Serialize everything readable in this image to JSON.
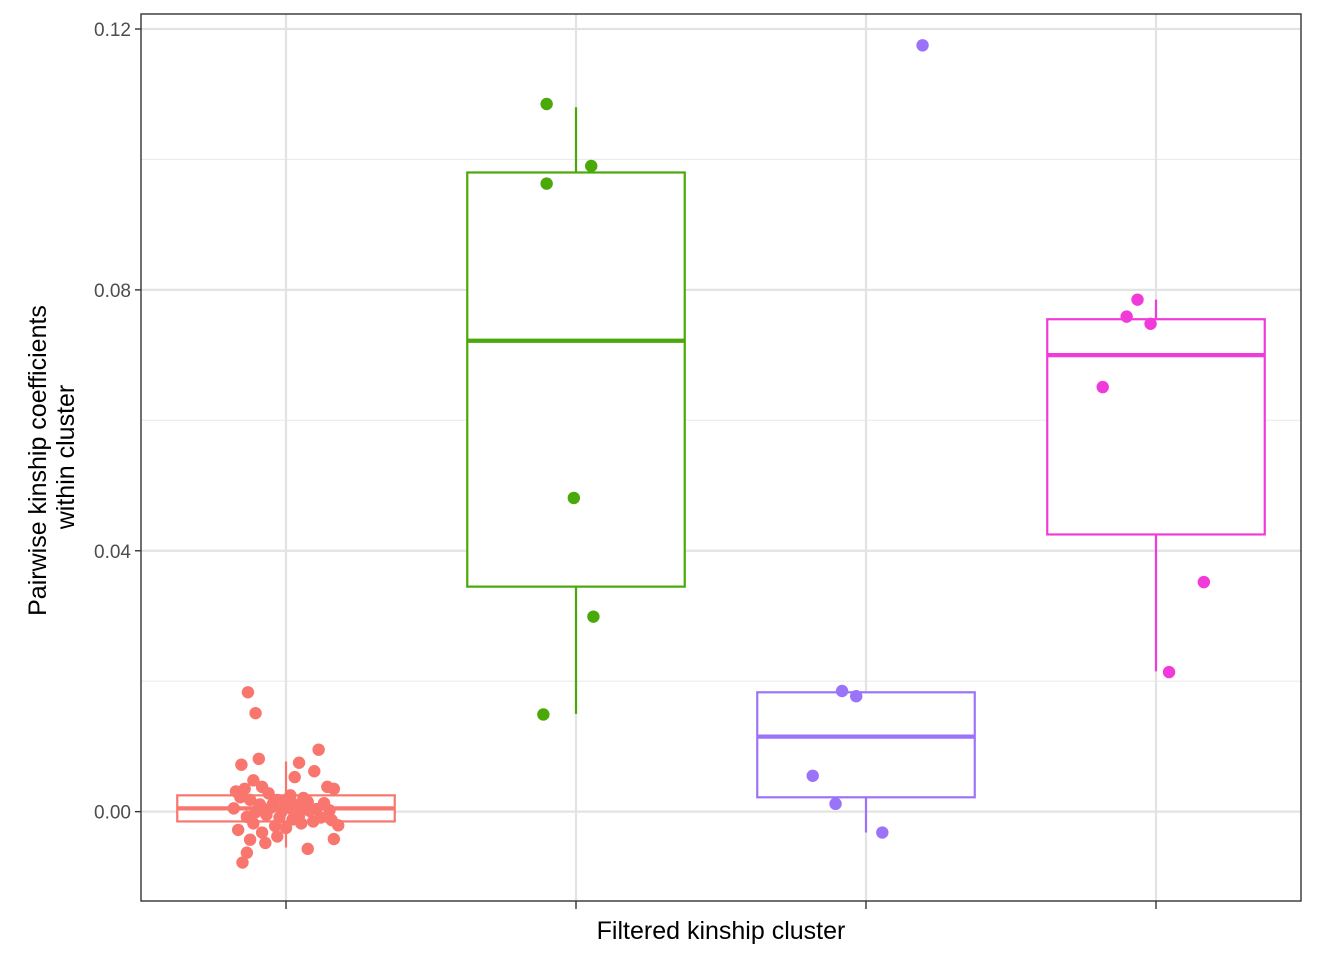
{
  "chart_data": {
    "type": "box",
    "xlabel": "Filtered kinship cluster",
    "ylabel_lines": [
      "Pairwise kinship coefficients",
      "within cluster"
    ],
    "ylim": [
      -0.0137,
      0.1223
    ],
    "yticks": [
      0.0,
      0.04,
      0.08,
      0.12
    ],
    "ytick_labels": [
      "0.00",
      "0.04",
      "0.08",
      "0.12"
    ],
    "grid": true,
    "legend": "none",
    "groups": [
      {
        "color": "#F8766D",
        "box": {
          "min": -0.0055,
          "q1": -0.0015,
          "median": 0.0005,
          "q3": 0.0025,
          "max": 0.0077
        },
        "points": [
          [
            -0.35,
            0.0183
          ],
          [
            -0.28,
            0.0151
          ],
          [
            -0.41,
            0.0072
          ],
          [
            -0.25,
            0.0081
          ],
          [
            0.12,
            0.0075
          ],
          [
            0.3,
            0.0095
          ],
          [
            0.08,
            0.0053
          ],
          [
            0.26,
            0.0062
          ],
          [
            -0.3,
            0.0048
          ],
          [
            -0.38,
            0.0035
          ],
          [
            -0.46,
            0.0031
          ],
          [
            -0.22,
            0.0038
          ],
          [
            -0.16,
            0.0028
          ],
          [
            0.04,
            0.0025
          ],
          [
            0.38,
            0.0038
          ],
          [
            0.44,
            0.0035
          ],
          [
            -0.42,
            0.0022
          ],
          [
            -0.08,
            0.0018
          ],
          [
            0.16,
            0.0021
          ],
          [
            -0.33,
            0.0018
          ],
          [
            -0.12,
            0.0012
          ],
          [
            0.02,
            0.0008
          ],
          [
            0.2,
            0.0015
          ],
          [
            0.35,
            0.0013
          ],
          [
            -0.48,
            0.0005
          ],
          [
            -0.26,
            0.0003
          ],
          [
            -0.04,
            0.0
          ],
          [
            0.1,
            -0.0002
          ],
          [
            0.28,
            0.0004
          ],
          [
            -0.36,
            -0.0008
          ],
          [
            -0.18,
            -0.0005
          ],
          [
            0.06,
            -0.0012
          ],
          [
            0.32,
            -0.0009
          ],
          [
            0.42,
            -0.0013
          ],
          [
            -0.3,
            -0.0018
          ],
          [
            -0.1,
            -0.0022
          ],
          [
            0.14,
            -0.0018
          ],
          [
            -0.44,
            -0.0028
          ],
          [
            -0.22,
            -0.0032
          ],
          [
            0.0,
            -0.0025
          ],
          [
            0.25,
            -0.0015
          ],
          [
            0.48,
            -0.0021
          ],
          [
            -0.33,
            -0.0043
          ],
          [
            -0.08,
            -0.0038
          ],
          [
            0.44,
            -0.0042
          ],
          [
            -0.19,
            -0.0048
          ],
          [
            0.2,
            -0.0057
          ],
          [
            -0.36,
            -0.0063
          ],
          [
            -0.4,
            -0.0078
          ],
          [
            0.06,
            0.0003
          ],
          [
            -0.14,
            0.0006
          ],
          [
            0.18,
            0.0008
          ],
          [
            -0.02,
            0.0016
          ],
          [
            0.12,
            -0.0006
          ],
          [
            -0.24,
            0.0011
          ],
          [
            0.4,
            0.0002
          ],
          [
            0.22,
            0.0001
          ],
          [
            -0.06,
            -0.0009
          ],
          [
            0.08,
            0.0011
          ],
          [
            -0.28,
            -0.0001
          ]
        ]
      },
      {
        "color": "#49A909",
        "box": {
          "min": 0.015,
          "q1": 0.0345,
          "median": 0.0722,
          "q3": 0.098,
          "max": 0.108
        },
        "points": [
          [
            -0.27,
            0.1085
          ],
          [
            0.14,
            0.099
          ],
          [
            -0.27,
            0.0963
          ],
          [
            -0.02,
            0.0481
          ],
          [
            0.16,
            0.0299
          ],
          [
            -0.3,
            0.0149
          ]
        ]
      },
      {
        "color": "#9B73F9",
        "box": {
          "min": -0.0032,
          "q1": 0.0022,
          "median": 0.0115,
          "q3": 0.0183,
          "max": 0.0183
        },
        "points": [
          [
            0.52,
            0.1175
          ],
          [
            -0.22,
            0.0185
          ],
          [
            -0.09,
            0.0177
          ],
          [
            -0.49,
            0.0055
          ],
          [
            -0.28,
            0.0012
          ],
          [
            0.15,
            -0.0032
          ]
        ]
      },
      {
        "color": "#F03BDA",
        "box": {
          "min": 0.0215,
          "q1": 0.0425,
          "median": 0.07,
          "q3": 0.0755,
          "max": 0.0785
        },
        "points": [
          [
            -0.17,
            0.0785
          ],
          [
            -0.27,
            0.0759
          ],
          [
            -0.05,
            0.0748
          ],
          [
            -0.49,
            0.0651
          ],
          [
            0.44,
            0.0352
          ],
          [
            0.12,
            0.0214
          ]
        ]
      }
    ]
  }
}
